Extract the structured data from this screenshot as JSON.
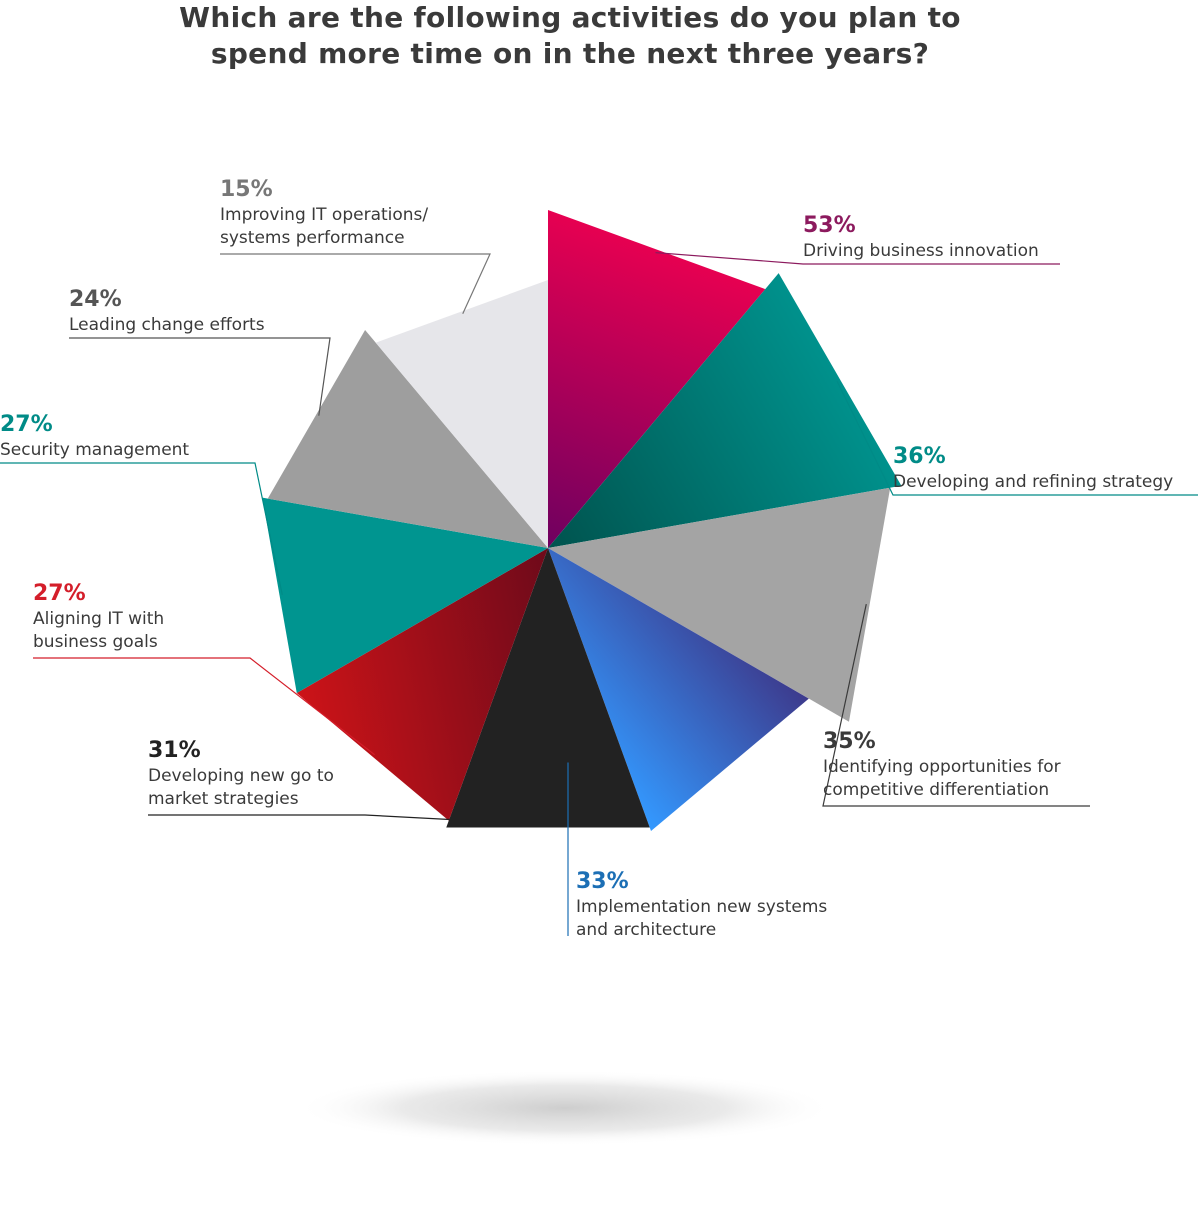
{
  "chart_data": {
    "type": "pie",
    "title_lines": [
      "Which are the following activities do you plan to",
      "spend more time on in the next three years?"
    ],
    "slices": [
      {
        "value": 53,
        "pct_label": "53%",
        "label_lines": [
          "Driving business innovation"
        ],
        "color_from": "#6e0060",
        "color_to": "#ee0050",
        "text_color": "#8c1a5e"
      },
      {
        "value": 36,
        "pct_label": "36%",
        "label_lines": [
          "Developing and refining strategy"
        ],
        "color_from": "#00534e",
        "color_to": "#009590",
        "text_color": "#008b87"
      },
      {
        "value": 35,
        "pct_label": "35%",
        "label_lines": [
          "Identifying opportunities for",
          "competitive differentiation"
        ],
        "color_from": "#a4a4a4",
        "color_to": "#a4a4a4",
        "text_color": "#3a3a3a"
      },
      {
        "value": 33,
        "pct_label": "33%",
        "label_lines": [
          "Implementation new systems",
          "and architecture"
        ],
        "color_from": "#3399ff",
        "color_to": "#3d3a8c",
        "text_color": "#1c6fb5"
      },
      {
        "value": 31,
        "pct_label": "31%",
        "label_lines": [
          "Developing new go to",
          "market strategies"
        ],
        "color_from": "#222222",
        "color_to": "#222222",
        "text_color": "#222222"
      },
      {
        "value": 27,
        "pct_label": "27%",
        "label_lines": [
          "Aligning IT with",
          "business goals"
        ],
        "color_from": "#d41418",
        "color_to": "#6e0a1a",
        "text_color": "#d41e2a"
      },
      {
        "value": 27,
        "pct_label": "27%",
        "label_lines": [
          "Security management"
        ],
        "color_from": "#009590",
        "color_to": "#009590",
        "text_color": "#008b87"
      },
      {
        "value": 24,
        "pct_label": "24%",
        "label_lines": [
          "Leading change efforts"
        ],
        "color_from": "#9e9e9e",
        "color_to": "#9e9e9e",
        "text_color": "#555555"
      },
      {
        "value": 15,
        "pct_label": "15%",
        "label_lines": [
          "Improving IT operations/",
          "systems performance"
        ],
        "color_from": "#e6e6ea",
        "color_to": "#e6e6ea",
        "text_color": "#777777"
      }
    ],
    "legend": "none"
  }
}
